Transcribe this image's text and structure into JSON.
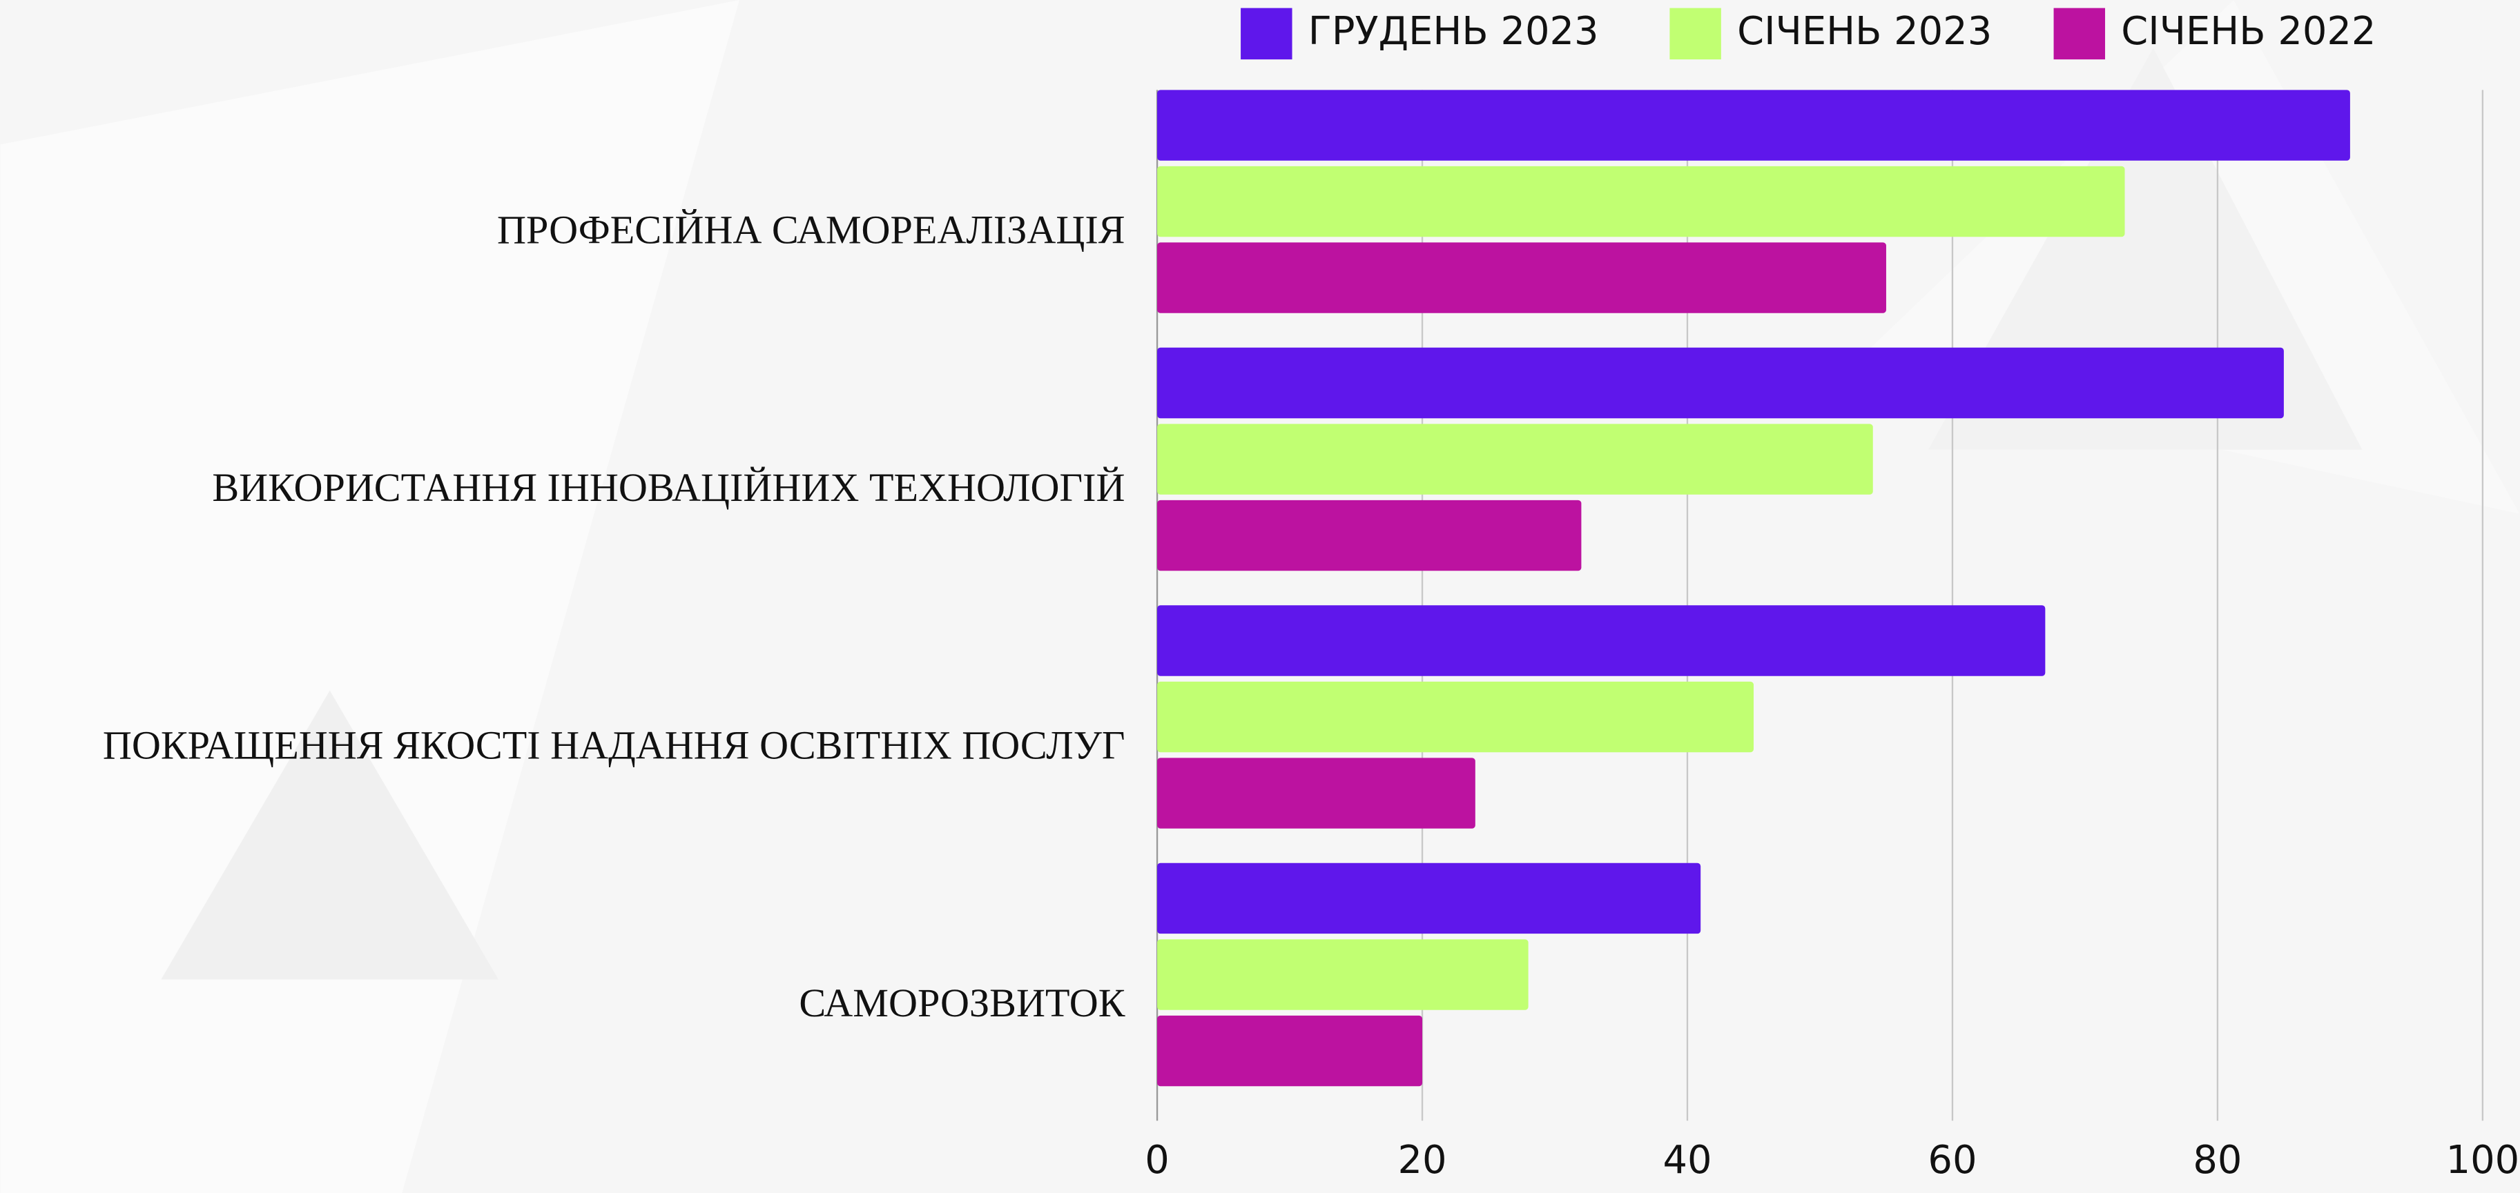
{
  "chart_data": {
    "type": "bar",
    "orientation": "horizontal",
    "categories": [
      "ПРОФЕСІЙНА САМОРЕАЛІЗАЦІЯ",
      "ВИКОРИСТАННЯ ІННОВАЦІЙНИХ ТЕХНОЛОГІЙ",
      "ПОКРАЩЕННЯ ЯКОСТІ НАДАННЯ ОСВІТНІХ ПОСЛУГ",
      "САМОРОЗВИТОК"
    ],
    "series": [
      {
        "name": "ГРУДЕНЬ 2023",
        "color": "#5f17eb",
        "values": [
          90,
          85,
          67,
          41
        ]
      },
      {
        "name": "СІЧЕНЬ 2023",
        "color": "#c1ff72",
        "values": [
          73,
          54,
          45,
          28
        ]
      },
      {
        "name": "СІЧЕНЬ 2022",
        "color": "#bc12a0",
        "values": [
          55,
          32,
          24,
          20
        ]
      }
    ],
    "xlim": [
      0,
      100
    ],
    "xticks": [
      0,
      20,
      40,
      60,
      80,
      100
    ],
    "grid": true,
    "legend": "top"
  }
}
